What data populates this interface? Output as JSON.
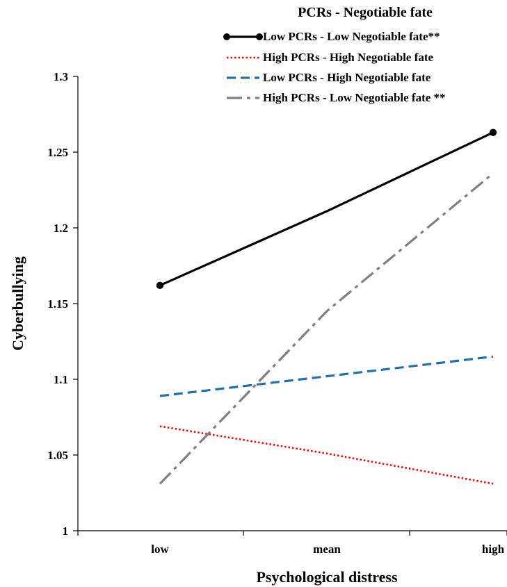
{
  "chart_data": {
    "type": "line",
    "title": "PCRs - Negotiable fate",
    "xlabel": "Psychological distress",
    "ylabel": "Cyberbullying",
    "categories": [
      "low",
      "mean",
      "high"
    ],
    "ylim": [
      1,
      1.3
    ],
    "yticks": [
      "1",
      "1.05",
      "1.1",
      "1.15",
      "1.2",
      "1.25",
      "1.3"
    ],
    "grid": false,
    "legend_position": "top-right",
    "series": [
      {
        "name": "Low PCRs - Low Negotiable fate**",
        "values": [
          1.162,
          1.211,
          1.263
        ],
        "color": "#000000",
        "style": "solid-markers"
      },
      {
        "name": "High PCRs - High Negotiable fate",
        "values": [
          1.069,
          1.051,
          1.031
        ],
        "color": "#ff0000",
        "style": "dotted"
      },
      {
        "name": "Low PCRs - High Negotiable fate",
        "values": [
          1.089,
          1.102,
          1.115
        ],
        "color": "#1f6fb4",
        "style": "dashed"
      },
      {
        "name": "High PCRs - Low Negotiable fate **",
        "values": [
          1.031,
          1.145,
          1.236
        ],
        "color": "#808080",
        "style": "dash-dot"
      }
    ]
  }
}
